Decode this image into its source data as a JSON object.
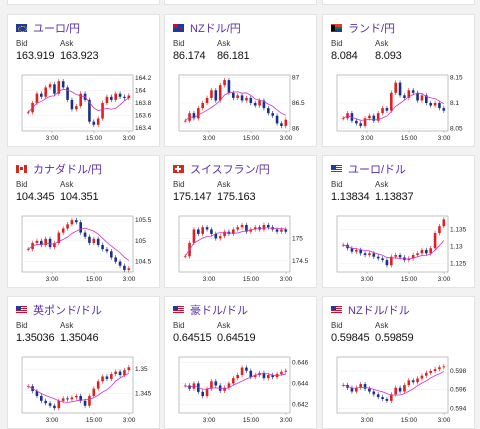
{
  "top_row_partial": [
    {
      "id": "top1"
    },
    {
      "id": "top2"
    },
    {
      "id": "top3"
    }
  ],
  "labels": {
    "bid": "Bid",
    "ask": "Ask"
  },
  "x_ticks": [
    "3:00",
    "15:00",
    "3:00"
  ],
  "colors": {
    "up": "#e02020",
    "down": "#1a2f8a",
    "ma": "#cc33cc",
    "title": "#5b2ea6"
  },
  "cards": [
    {
      "name": "eur-jpy",
      "flag": "eu",
      "title": "ユーロ/円",
      "bid": "163.919",
      "ask": "163.923",
      "y_ticks": [
        "164.2",
        "164",
        "163.8",
        "163.6",
        "163.4"
      ],
      "ylim": [
        163.35,
        164.25
      ],
      "series": [
        163.65,
        163.8,
        163.95,
        163.9,
        164.05,
        164.1,
        163.95,
        164.15,
        164.05,
        163.85,
        163.7,
        163.75,
        163.95,
        163.85,
        163.5,
        163.45,
        163.55,
        163.8,
        163.9,
        163.85,
        163.95,
        163.9,
        163.88,
        163.92
      ]
    },
    {
      "name": "nzd-jpy",
      "flag": "nz",
      "title": "NZドル/円",
      "bid": "86.174",
      "ask": "86.181",
      "y_ticks": [
        "87",
        "86.5",
        "86"
      ],
      "ylim": [
        85.95,
        87.05
      ],
      "series": [
        86.15,
        86.3,
        86.2,
        86.4,
        86.5,
        86.6,
        86.75,
        86.55,
        86.85,
        86.95,
        86.7,
        86.6,
        86.65,
        86.55,
        86.6,
        86.5,
        86.45,
        86.55,
        86.4,
        86.3,
        86.25,
        86.1,
        86.05,
        86.17
      ]
    },
    {
      "name": "zar-jpy",
      "flag": "za",
      "title": "ランド/円",
      "bid": "8.084",
      "ask": "8.093",
      "y_ticks": [
        "8.15",
        "8.1",
        "8.05"
      ],
      "ylim": [
        8.045,
        8.155
      ],
      "series": [
        8.07,
        8.08,
        8.065,
        8.06,
        8.055,
        8.07,
        8.075,
        8.065,
        8.08,
        8.09,
        8.085,
        8.12,
        8.14,
        8.115,
        8.11,
        8.125,
        8.12,
        8.105,
        8.115,
        8.1,
        8.095,
        8.1,
        8.09,
        8.085
      ]
    },
    {
      "name": "cad-jpy",
      "flag": "ca",
      "title": "カナダドル/円",
      "bid": "104.345",
      "ask": "104.351",
      "y_ticks": [
        "105.5",
        "105",
        "104.5"
      ],
      "ylim": [
        104.25,
        105.6
      ],
      "series": [
        104.8,
        104.95,
        105.0,
        104.9,
        105.05,
        104.85,
        104.95,
        105.2,
        105.3,
        105.4,
        105.5,
        105.45,
        105.2,
        105.1,
        104.95,
        105.05,
        104.9,
        104.8,
        104.75,
        104.6,
        104.5,
        104.4,
        104.3,
        104.34
      ]
    },
    {
      "name": "chf-jpy",
      "flag": "ch",
      "title": "スイスフラン/円",
      "bid": "175.147",
      "ask": "175.163",
      "y_ticks": [
        "175",
        "174.5"
      ],
      "ylim": [
        174.25,
        175.5
      ],
      "series": [
        174.6,
        174.9,
        175.2,
        175.1,
        175.25,
        175.2,
        175.1,
        175.0,
        175.05,
        175.15,
        175.1,
        175.2,
        175.25,
        175.3,
        175.15,
        175.2,
        175.25,
        175.2,
        175.3,
        175.25,
        175.2,
        175.15,
        175.2,
        175.15
      ]
    },
    {
      "name": "eur-usd",
      "flag": "us",
      "title": "ユーロ/ドル",
      "bid": "1.13834",
      "ask": "1.13837",
      "y_ticks": [
        "1.135",
        "1.13",
        "1.125"
      ],
      "ylim": [
        1.1225,
        1.139
      ],
      "series": [
        1.1305,
        1.1295,
        1.1285,
        1.129,
        1.128,
        1.1275,
        1.128,
        1.127,
        1.1265,
        1.126,
        1.1245,
        1.127,
        1.1275,
        1.1268,
        1.126,
        1.1265,
        1.1275,
        1.128,
        1.129,
        1.128,
        1.1295,
        1.134,
        1.136,
        1.138
      ]
    },
    {
      "name": "gbp-usd",
      "flag": "us",
      "title": "英ポンド/ドル",
      "bid": "1.35036",
      "ask": "1.35046",
      "y_ticks": [
        "1.35",
        "1.345"
      ],
      "ylim": [
        1.341,
        1.3525
      ],
      "series": [
        1.3465,
        1.3455,
        1.3445,
        1.3435,
        1.343,
        1.3425,
        1.342,
        1.3435,
        1.344,
        1.3438,
        1.3442,
        1.3445,
        1.3435,
        1.3425,
        1.3445,
        1.346,
        1.3475,
        1.3485,
        1.348,
        1.349,
        1.3495,
        1.3488,
        1.3498,
        1.3504
      ]
    },
    {
      "name": "aud-usd",
      "flag": "us",
      "title": "豪ドル/ドル",
      "bid": "0.64515",
      "ask": "0.64519",
      "y_ticks": [
        "0.646",
        "0.644",
        "0.642"
      ],
      "ylim": [
        0.6412,
        0.6465
      ],
      "series": [
        0.6438,
        0.6435,
        0.644,
        0.6432,
        0.6428,
        0.6435,
        0.6442,
        0.6438,
        0.6433,
        0.6436,
        0.644,
        0.6445,
        0.6448,
        0.6455,
        0.6452,
        0.6446,
        0.6448,
        0.645,
        0.6445,
        0.6448,
        0.6446,
        0.6449,
        0.6451,
        0.6452
      ]
    },
    {
      "name": "nzd-usd",
      "flag": "us",
      "title": "NZドル/ドル",
      "bid": "0.59845",
      "ask": "0.59859",
      "y_ticks": [
        "0.598",
        "0.596",
        "0.594"
      ],
      "ylim": [
        0.5935,
        0.5995
      ],
      "series": [
        0.5965,
        0.5962,
        0.5958,
        0.5962,
        0.5966,
        0.5961,
        0.5958,
        0.5955,
        0.5952,
        0.595,
        0.5948,
        0.5955,
        0.5962,
        0.5958,
        0.5965,
        0.597,
        0.5968,
        0.5972,
        0.5975,
        0.5978,
        0.598,
        0.5982,
        0.5984,
        0.5985
      ]
    }
  ]
}
